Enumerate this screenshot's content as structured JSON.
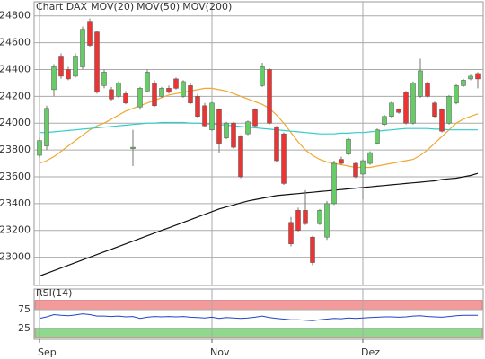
{
  "chart_data": [
    {
      "type": "candlestick",
      "title": "Chart DAX",
      "title_color": "#e8534a",
      "categories": [
        "Sep",
        null,
        null,
        null,
        null,
        null,
        null,
        null,
        null,
        null,
        null,
        null,
        null,
        null,
        null,
        null,
        null,
        null,
        null,
        null,
        null,
        null,
        null,
        null,
        "Nov",
        null,
        null,
        null,
        null,
        null,
        null,
        null,
        null,
        null,
        null,
        null,
        null,
        null,
        null,
        null,
        null,
        null,
        null,
        null,
        null,
        "Dez",
        null,
        null,
        null,
        null,
        null,
        null,
        null,
        null,
        null,
        null,
        null,
        null,
        null,
        null,
        null,
        null
      ],
      "open": [
        23760,
        23830,
        24250,
        24500,
        24400,
        24350,
        24420,
        24760,
        24680,
        24280,
        24250,
        24200,
        24220,
        23810,
        24120,
        24240,
        24300,
        24200,
        24260,
        24330,
        24200,
        24280,
        24200,
        24130,
        23950,
        24100,
        23890,
        24000,
        23900,
        23920,
        24100,
        24280,
        24400,
        23970,
        23920,
        23260,
        23350,
        23350,
        23150,
        23250,
        23150,
        23400,
        23730,
        23770,
        23700,
        23620,
        23700,
        23850,
        23990,
        24050,
        24100,
        24230,
        24000,
        24200,
        24300,
        24150,
        24100,
        24000,
        24150,
        24280,
        24330,
        24370
      ],
      "high": [
        23890,
        24130,
        24440,
        24520,
        24420,
        24520,
        24720,
        24780,
        24690,
        24400,
        24270,
        24310,
        24240,
        23950,
        24270,
        24400,
        24320,
        24270,
        24280,
        24340,
        24320,
        24300,
        24220,
        24150,
        24160,
        24110,
        24010,
        24010,
        23910,
        24020,
        24110,
        24450,
        24410,
        23980,
        23930,
        23300,
        23370,
        23500,
        23160,
        23360,
        23420,
        23720,
        23750,
        23890,
        23710,
        23730,
        23790,
        23960,
        24060,
        24160,
        24110,
        24240,
        24310,
        24480,
        24310,
        24160,
        24110,
        24210,
        24290,
        24330,
        24360,
        24380
      ],
      "low": [
        23740,
        23800,
        24200,
        24330,
        24320,
        24340,
        24400,
        24570,
        24220,
        24260,
        24170,
        24190,
        24140,
        23680,
        24100,
        24230,
        24120,
        24190,
        24220,
        24250,
        24190,
        24140,
        24040,
        23970,
        23940,
        23780,
        23880,
        23810,
        23590,
        23910,
        23970,
        24270,
        23990,
        23710,
        23540,
        23080,
        23190,
        23240,
        22940,
        23240,
        23130,
        23390,
        23690,
        23760,
        23590,
        23430,
        23690,
        23840,
        23980,
        24040,
        24070,
        23990,
        23990,
        24190,
        24190,
        24040,
        23930,
        23990,
        24140,
        24270,
        24320,
        24260
      ],
      "close": [
        23870,
        24110,
        24420,
        24350,
        24330,
        24500,
        24700,
        24580,
        24230,
        24380,
        24180,
        24300,
        24150,
        23820,
        24260,
        24380,
        24130,
        24260,
        24230,
        24260,
        24310,
        24150,
        24050,
        23980,
        24150,
        23850,
        24000,
        23820,
        23600,
        24010,
        23980,
        24420,
        24000,
        23720,
        23550,
        23100,
        23200,
        23250,
        22960,
        23350,
        23400,
        23700,
        23700,
        23880,
        23600,
        23720,
        23780,
        23950,
        24050,
        24150,
        24080,
        24000,
        24300,
        24390,
        24200,
        24050,
        23940,
        24200,
        24280,
        24320,
        24350,
        24330
      ],
      "up_color": "#66cc66",
      "down_color": "#ee3333",
      "wick_color": "#777777",
      "series": [
        {
          "name": "MOV(20)",
          "color": "#f0a830",
          "values": [
            23700,
            23720,
            23750,
            23790,
            23830,
            23870,
            23910,
            23950,
            23980,
            24000,
            24030,
            24060,
            24090,
            24110,
            24130,
            24150,
            24170,
            24190,
            24210,
            24220,
            24230,
            24240,
            24250,
            24260,
            24260,
            24250,
            24240,
            24220,
            24200,
            24180,
            24160,
            24140,
            24110,
            24060,
            24000,
            23930,
            23860,
            23800,
            23760,
            23730,
            23710,
            23700,
            23690,
            23680,
            23670,
            23670,
            23670,
            23680,
            23690,
            23700,
            23710,
            23720,
            23730,
            23760,
            23800,
            23850,
            23900,
            23950,
            24000,
            24030,
            24050,
            24070
          ]
        },
        {
          "name": "MOV(50)",
          "color": "#33cccc",
          "values": [
            23930,
            23930,
            23935,
            23940,
            23945,
            23950,
            23955,
            23960,
            23965,
            23970,
            23975,
            23980,
            23985,
            23990,
            23995,
            24000,
            24000,
            24005,
            24005,
            24005,
            24005,
            24000,
            24000,
            23995,
            23995,
            23990,
            23985,
            23980,
            23975,
            23970,
            23965,
            23960,
            23955,
            23950,
            23945,
            23940,
            23935,
            23930,
            23925,
            23920,
            23920,
            23920,
            23925,
            23925,
            23930,
            23930,
            23935,
            23940,
            23945,
            23950,
            23955,
            23960,
            23960,
            23960,
            23960,
            23955,
            23955,
            23950,
            23950,
            23950,
            23950,
            23950
          ]
        },
        {
          "name": "MOV(200)",
          "color": "#111111",
          "values": [
            22860,
            22880,
            22900,
            22920,
            22940,
            22960,
            22980,
            23000,
            23020,
            23040,
            23060,
            23080,
            23100,
            23120,
            23140,
            23160,
            23180,
            23200,
            23220,
            23240,
            23260,
            23280,
            23300,
            23320,
            23340,
            23360,
            23375,
            23390,
            23405,
            23420,
            23430,
            23440,
            23450,
            23460,
            23465,
            23470,
            23475,
            23480,
            23485,
            23490,
            23495,
            23500,
            23505,
            23510,
            23515,
            23520,
            23525,
            23530,
            23535,
            23540,
            23545,
            23550,
            23555,
            23560,
            23565,
            23570,
            23580,
            23585,
            23590,
            23600,
            23610,
            23625
          ]
        }
      ],
      "ylim": [
        22790,
        24905
      ],
      "yticks": [
        23000,
        23200,
        23400,
        23600,
        23800,
        24000,
        24200,
        24400,
        24600,
        24800
      ],
      "grid": true
    },
    {
      "type": "line",
      "title": "RSI(14)",
      "color": "#2244cc",
      "values": [
        52,
        56,
        62,
        60,
        59,
        61,
        64,
        62,
        58,
        58,
        57,
        58,
        56,
        57,
        52,
        55,
        57,
        56,
        57,
        56,
        57,
        55,
        54,
        53,
        55,
        52,
        54,
        53,
        52,
        53,
        55,
        58,
        54,
        52,
        50,
        48,
        48,
        47,
        46,
        48,
        50,
        52,
        51,
        53,
        52,
        53,
        54,
        55,
        56,
        56,
        55,
        56,
        58,
        59,
        57,
        56,
        55,
        57,
        59,
        60,
        60,
        60
      ],
      "ylim": [
        0,
        100
      ],
      "yticks": [
        25,
        75
      ],
      "zones": [
        {
          "from": 75,
          "to": 100,
          "color": "#f49a9a"
        },
        {
          "from": 0,
          "to": 25,
          "color": "#8fd98f"
        }
      ]
    }
  ]
}
